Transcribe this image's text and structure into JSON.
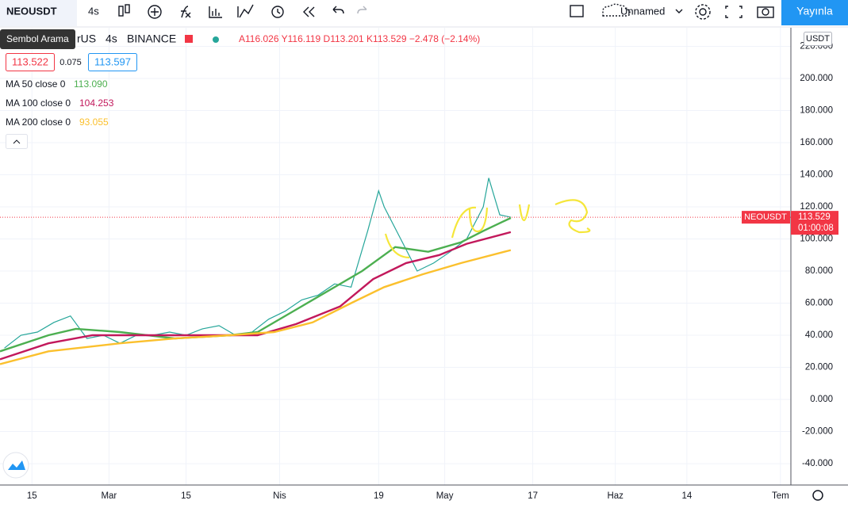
{
  "toolbar": {
    "symbol": "NEOUSDT",
    "interval": "4s",
    "layout_name": "Unnamed",
    "publish": "Yayınla",
    "tooltip": "Sembol Arama"
  },
  "legend": {
    "pair": "rUS",
    "interval": "4s",
    "exchange": "BINANCE",
    "ohlc": "A116.026 Y116.119 D113.201 K113.529 −2.478 (−2.14%)",
    "sell": "113.522",
    "spread": "0.075",
    "buy": "113.597",
    "ma_values": [
      "113.090",
      "104.253",
      "93.055"
    ]
  },
  "price_tag": {
    "price": "113.529",
    "countdown": "01:00:08"
  },
  "currency": "USDT",
  "chart_data": {
    "type": "line",
    "xlim": [
      8.2,
      151.9
    ],
    "ylim": [
      -53.3,
      231.6
    ],
    "xticks": [
      {
        "value": 14,
        "label": "15"
      },
      {
        "value": 28,
        "label": "Mar"
      },
      {
        "value": 42,
        "label": "15"
      },
      {
        "value": 59,
        "label": "Nis"
      },
      {
        "value": 77,
        "label": "19"
      },
      {
        "value": 89,
        "label": "May"
      },
      {
        "value": 105,
        "label": "17"
      },
      {
        "value": 120,
        "label": "Haz"
      },
      {
        "value": 133,
        "label": "14"
      },
      {
        "value": 150,
        "label": "Tem"
      }
    ],
    "yticks": [
      {
        "value": -40,
        "label": "-40.000"
      },
      {
        "value": -20,
        "label": "-20.000"
      },
      {
        "value": 0,
        "label": "0.000"
      },
      {
        "value": 20,
        "label": "20.000"
      },
      {
        "value": 40,
        "label": "40.000"
      },
      {
        "value": 60,
        "label": "60.000"
      },
      {
        "value": 80,
        "label": "80.000"
      },
      {
        "value": 100,
        "label": "100.000"
      },
      {
        "value": 120,
        "label": "120.000"
      },
      {
        "value": 140,
        "label": "140.000"
      },
      {
        "value": 160,
        "label": "160.000"
      },
      {
        "value": 180,
        "label": "180.000"
      },
      {
        "value": 200,
        "label": "200.000"
      },
      {
        "value": 220,
        "label": "220.000"
      }
    ],
    "grid": true,
    "series": [
      {
        "name": "NEOUSDT",
        "color": "#26a69a",
        "x": [
          9,
          12,
          15,
          18,
          21,
          24,
          27,
          30,
          33,
          36,
          39,
          42,
          45,
          48,
          51,
          54,
          57,
          60,
          63,
          66,
          69,
          72,
          75,
          77,
          78,
          81,
          84,
          87,
          90,
          93,
          96,
          97,
          99,
          101
        ],
        "values": [
          32,
          40,
          42,
          48,
          52,
          38,
          40,
          35,
          40,
          40,
          42,
          40,
          44,
          46,
          40,
          42,
          50,
          55,
          62,
          65,
          72,
          70,
          105,
          130,
          120,
          100,
          80,
          85,
          92,
          100,
          120,
          138,
          115,
          113.529
        ]
      },
      {
        "name": "MA 50 close 0",
        "color": "#4caf50",
        "x": [
          8.2,
          17,
          22,
          30,
          40,
          50,
          55,
          63,
          74,
          80,
          86,
          92,
          96,
          101
        ],
        "values": [
          30,
          40,
          44,
          42,
          38,
          40,
          42,
          58,
          80,
          95,
          92,
          98,
          105,
          113.09
        ]
      },
      {
        "name": "MA 100 close 0",
        "color": "#c2185b",
        "x": [
          8.2,
          17,
          25,
          35,
          45,
          55,
          62,
          70,
          76,
          82,
          88,
          93,
          101
        ],
        "values": [
          25,
          35,
          40,
          40,
          40,
          40,
          47,
          58,
          75,
          85,
          90,
          97,
          104.253
        ]
      },
      {
        "name": "MA 200 close 0",
        "color": "#fbc02d",
        "x": [
          8.2,
          17,
          30,
          40,
          50,
          58,
          65,
          72,
          78,
          85,
          92,
          101
        ],
        "values": [
          22,
          30,
          35,
          38,
          40,
          42,
          48,
          60,
          70,
          78,
          85,
          93.055
        ]
      }
    ]
  }
}
